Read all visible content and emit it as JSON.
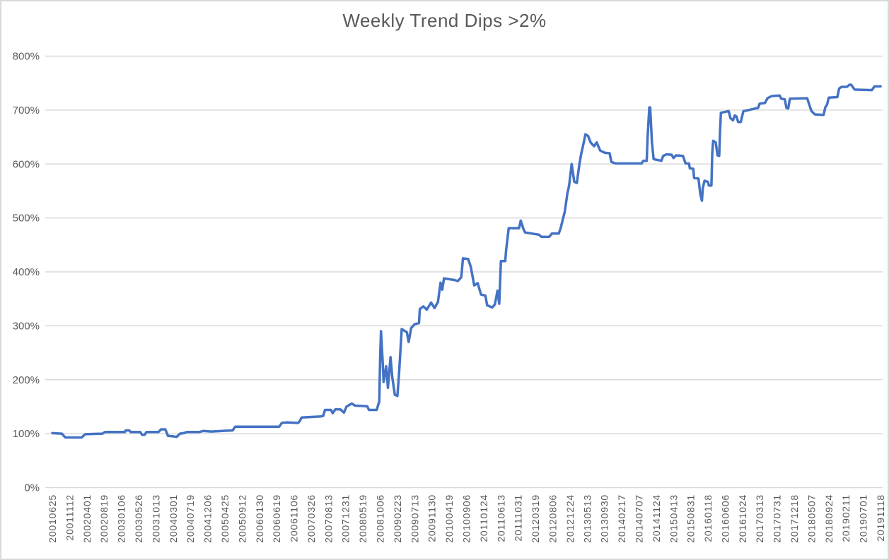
{
  "chart_title": "Weekly Trend Dips >2%",
  "colors": {
    "line": "#4472C4",
    "grid": "#D9D9D9",
    "axis_text": "#595959",
    "title_text": "#595959",
    "background": "#FFFFFF",
    "frame_border": "#D9D9D9"
  },
  "chart_data": {
    "type": "line",
    "title": "Weekly Trend Dips >2%",
    "xlabel": "",
    "ylabel": "",
    "legend": "none",
    "grid": "horizontal",
    "ylim": [
      0,
      800
    ],
    "y_tick_labels": [
      "0%",
      "100%",
      "200%",
      "300%",
      "400%",
      "500%",
      "600%",
      "700%",
      "800%"
    ],
    "y_tick_values": [
      0,
      100,
      200,
      300,
      400,
      500,
      600,
      700,
      800
    ],
    "x_tick_labels": [
      "20010625",
      "20011112",
      "20020401",
      "20020819",
      "20030106",
      "20030526",
      "20031013",
      "20040301",
      "20040719",
      "20041206",
      "20050425",
      "20050912",
      "20060130",
      "20060619",
      "20061106",
      "20070326",
      "20070813",
      "20071231",
      "20080519",
      "20081006",
      "20090223",
      "20090713",
      "20091130",
      "20100419",
      "20100906",
      "20110124",
      "20110613",
      "20111031",
      "20120319",
      "20120806",
      "20121224",
      "20130513",
      "20130930",
      "20140217",
      "20140707",
      "20141124",
      "20150413",
      "20150831",
      "20160118",
      "20160606",
      "20161024",
      "20170313",
      "20170731",
      "20171218",
      "20180507",
      "20180924",
      "20190211",
      "20190701",
      "20191118"
    ],
    "weeks_per_tick": 20,
    "x_total_weeks": 960,
    "series": [
      {
        "color": "#4472C4",
        "points": [
          [
            0,
            101
          ],
          [
            11,
            100
          ],
          [
            15,
            93
          ],
          [
            34,
            93
          ],
          [
            38,
            99
          ],
          [
            58,
            100
          ],
          [
            61,
            103
          ],
          [
            84,
            103
          ],
          [
            85,
            106
          ],
          [
            89,
            106
          ],
          [
            91,
            103
          ],
          [
            102,
            103
          ],
          [
            104,
            98
          ],
          [
            107,
            98
          ],
          [
            109,
            103
          ],
          [
            123,
            103
          ],
          [
            126,
            108
          ],
          [
            131,
            108
          ],
          [
            134,
            96
          ],
          [
            140,
            95
          ],
          [
            144,
            94
          ],
          [
            148,
            100
          ],
          [
            152,
            101
          ],
          [
            156,
            103
          ],
          [
            170,
            103
          ],
          [
            175,
            105
          ],
          [
            184,
            104
          ],
          [
            197,
            105
          ],
          [
            209,
            106
          ],
          [
            212,
            113
          ],
          [
            263,
            113
          ],
          [
            266,
            120
          ],
          [
            272,
            121
          ],
          [
            285,
            120
          ],
          [
            287,
            124
          ],
          [
            289,
            130
          ],
          [
            311,
            132
          ],
          [
            314,
            133
          ],
          [
            316,
            144
          ],
          [
            323,
            144
          ],
          [
            325,
            138
          ],
          [
            328,
            145
          ],
          [
            334,
            145
          ],
          [
            338,
            139
          ],
          [
            341,
            150
          ],
          [
            347,
            156
          ],
          [
            351,
            152
          ],
          [
            365,
            151
          ],
          [
            367,
            144
          ],
          [
            376,
            144
          ],
          [
            379,
            160
          ],
          [
            380,
            240
          ],
          [
            381,
            290
          ],
          [
            383,
            230
          ],
          [
            384,
            196
          ],
          [
            387,
            225
          ],
          [
            389,
            185
          ],
          [
            392,
            242
          ],
          [
            394,
            205
          ],
          [
            397,
            172
          ],
          [
            400,
            170
          ],
          [
            402,
            215
          ],
          [
            405,
            294
          ],
          [
            411,
            288
          ],
          [
            413,
            270
          ],
          [
            416,
            296
          ],
          [
            420,
            303
          ],
          [
            425,
            305
          ],
          [
            426,
            331
          ],
          [
            430,
            336
          ],
          [
            434,
            330
          ],
          [
            439,
            343
          ],
          [
            443,
            333
          ],
          [
            447,
            344
          ],
          [
            450,
            380
          ],
          [
            452,
            367
          ],
          [
            454,
            388
          ],
          [
            466,
            385
          ],
          [
            470,
            383
          ],
          [
            474,
            390
          ],
          [
            476,
            425
          ],
          [
            482,
            424
          ],
          [
            485,
            410
          ],
          [
            489,
            375
          ],
          [
            493,
            379
          ],
          [
            497,
            358
          ],
          [
            502,
            356
          ],
          [
            504,
            338
          ],
          [
            510,
            334
          ],
          [
            513,
            340
          ],
          [
            516,
            365
          ],
          [
            518,
            341
          ],
          [
            520,
            420
          ],
          [
            525,
            420
          ],
          [
            526,
            440
          ],
          [
            529,
            481
          ],
          [
            541,
            481
          ],
          [
            543,
            495
          ],
          [
            546,
            480
          ],
          [
            548,
            473
          ],
          [
            564,
            469
          ],
          [
            567,
            465
          ],
          [
            576,
            465
          ],
          [
            579,
            471
          ],
          [
            587,
            471
          ],
          [
            589,
            480
          ],
          [
            594,
            512
          ],
          [
            597,
            545
          ],
          [
            599,
            560
          ],
          [
            602,
            600
          ],
          [
            605,
            567
          ],
          [
            608,
            565
          ],
          [
            611,
            600
          ],
          [
            613,
            618
          ],
          [
            616,
            640
          ],
          [
            618,
            655
          ],
          [
            621,
            652
          ],
          [
            624,
            640
          ],
          [
            628,
            633
          ],
          [
            631,
            640
          ],
          [
            635,
            625
          ],
          [
            640,
            621
          ],
          [
            646,
            620
          ],
          [
            648,
            604
          ],
          [
            653,
            601
          ],
          [
            683,
            601
          ],
          [
            685,
            606
          ],
          [
            689,
            606
          ],
          [
            690,
            650
          ],
          [
            692,
            705
          ],
          [
            693,
            705
          ],
          [
            695,
            640
          ],
          [
            697,
            609
          ],
          [
            706,
            606
          ],
          [
            708,
            615
          ],
          [
            712,
            618
          ],
          [
            718,
            617
          ],
          [
            720,
            611
          ],
          [
            723,
            616
          ],
          [
            731,
            615
          ],
          [
            734,
            601
          ],
          [
            738,
            601
          ],
          [
            739,
            592
          ],
          [
            743,
            591
          ],
          [
            744,
            574
          ],
          [
            749,
            573
          ],
          [
            751,
            545
          ],
          [
            753,
            532
          ],
          [
            754,
            555
          ],
          [
            756,
            569
          ],
          [
            760,
            567
          ],
          [
            761,
            560
          ],
          [
            764,
            560
          ],
          [
            765,
            620
          ],
          [
            766,
            643
          ],
          [
            769,
            640
          ],
          [
            771,
            616
          ],
          [
            773,
            615
          ],
          [
            774,
            660
          ],
          [
            775,
            695
          ],
          [
            784,
            698
          ],
          [
            786,
            685
          ],
          [
            789,
            681
          ],
          [
            791,
            690
          ],
          [
            793,
            688
          ],
          [
            795,
            678
          ],
          [
            798,
            678
          ],
          [
            801,
            698
          ],
          [
            807,
            700
          ],
          [
            815,
            703
          ],
          [
            818,
            704
          ],
          [
            820,
            712
          ],
          [
            826,
            713
          ],
          [
            829,
            722
          ],
          [
            834,
            726
          ],
          [
            843,
            727
          ],
          [
            845,
            721
          ],
          [
            849,
            720
          ],
          [
            851,
            704
          ],
          [
            853,
            703
          ],
          [
            855,
            721
          ],
          [
            875,
            722
          ],
          [
            878,
            707
          ],
          [
            880,
            698
          ],
          [
            884,
            692
          ],
          [
            894,
            691
          ],
          [
            896,
            705
          ],
          [
            898,
            710
          ],
          [
            900,
            723
          ],
          [
            910,
            724
          ],
          [
            912,
            740
          ],
          [
            915,
            743
          ],
          [
            921,
            743
          ],
          [
            924,
            747
          ],
          [
            926,
            747
          ],
          [
            930,
            738
          ],
          [
            950,
            737
          ],
          [
            953,
            744
          ],
          [
            960,
            744
          ]
        ]
      }
    ]
  }
}
